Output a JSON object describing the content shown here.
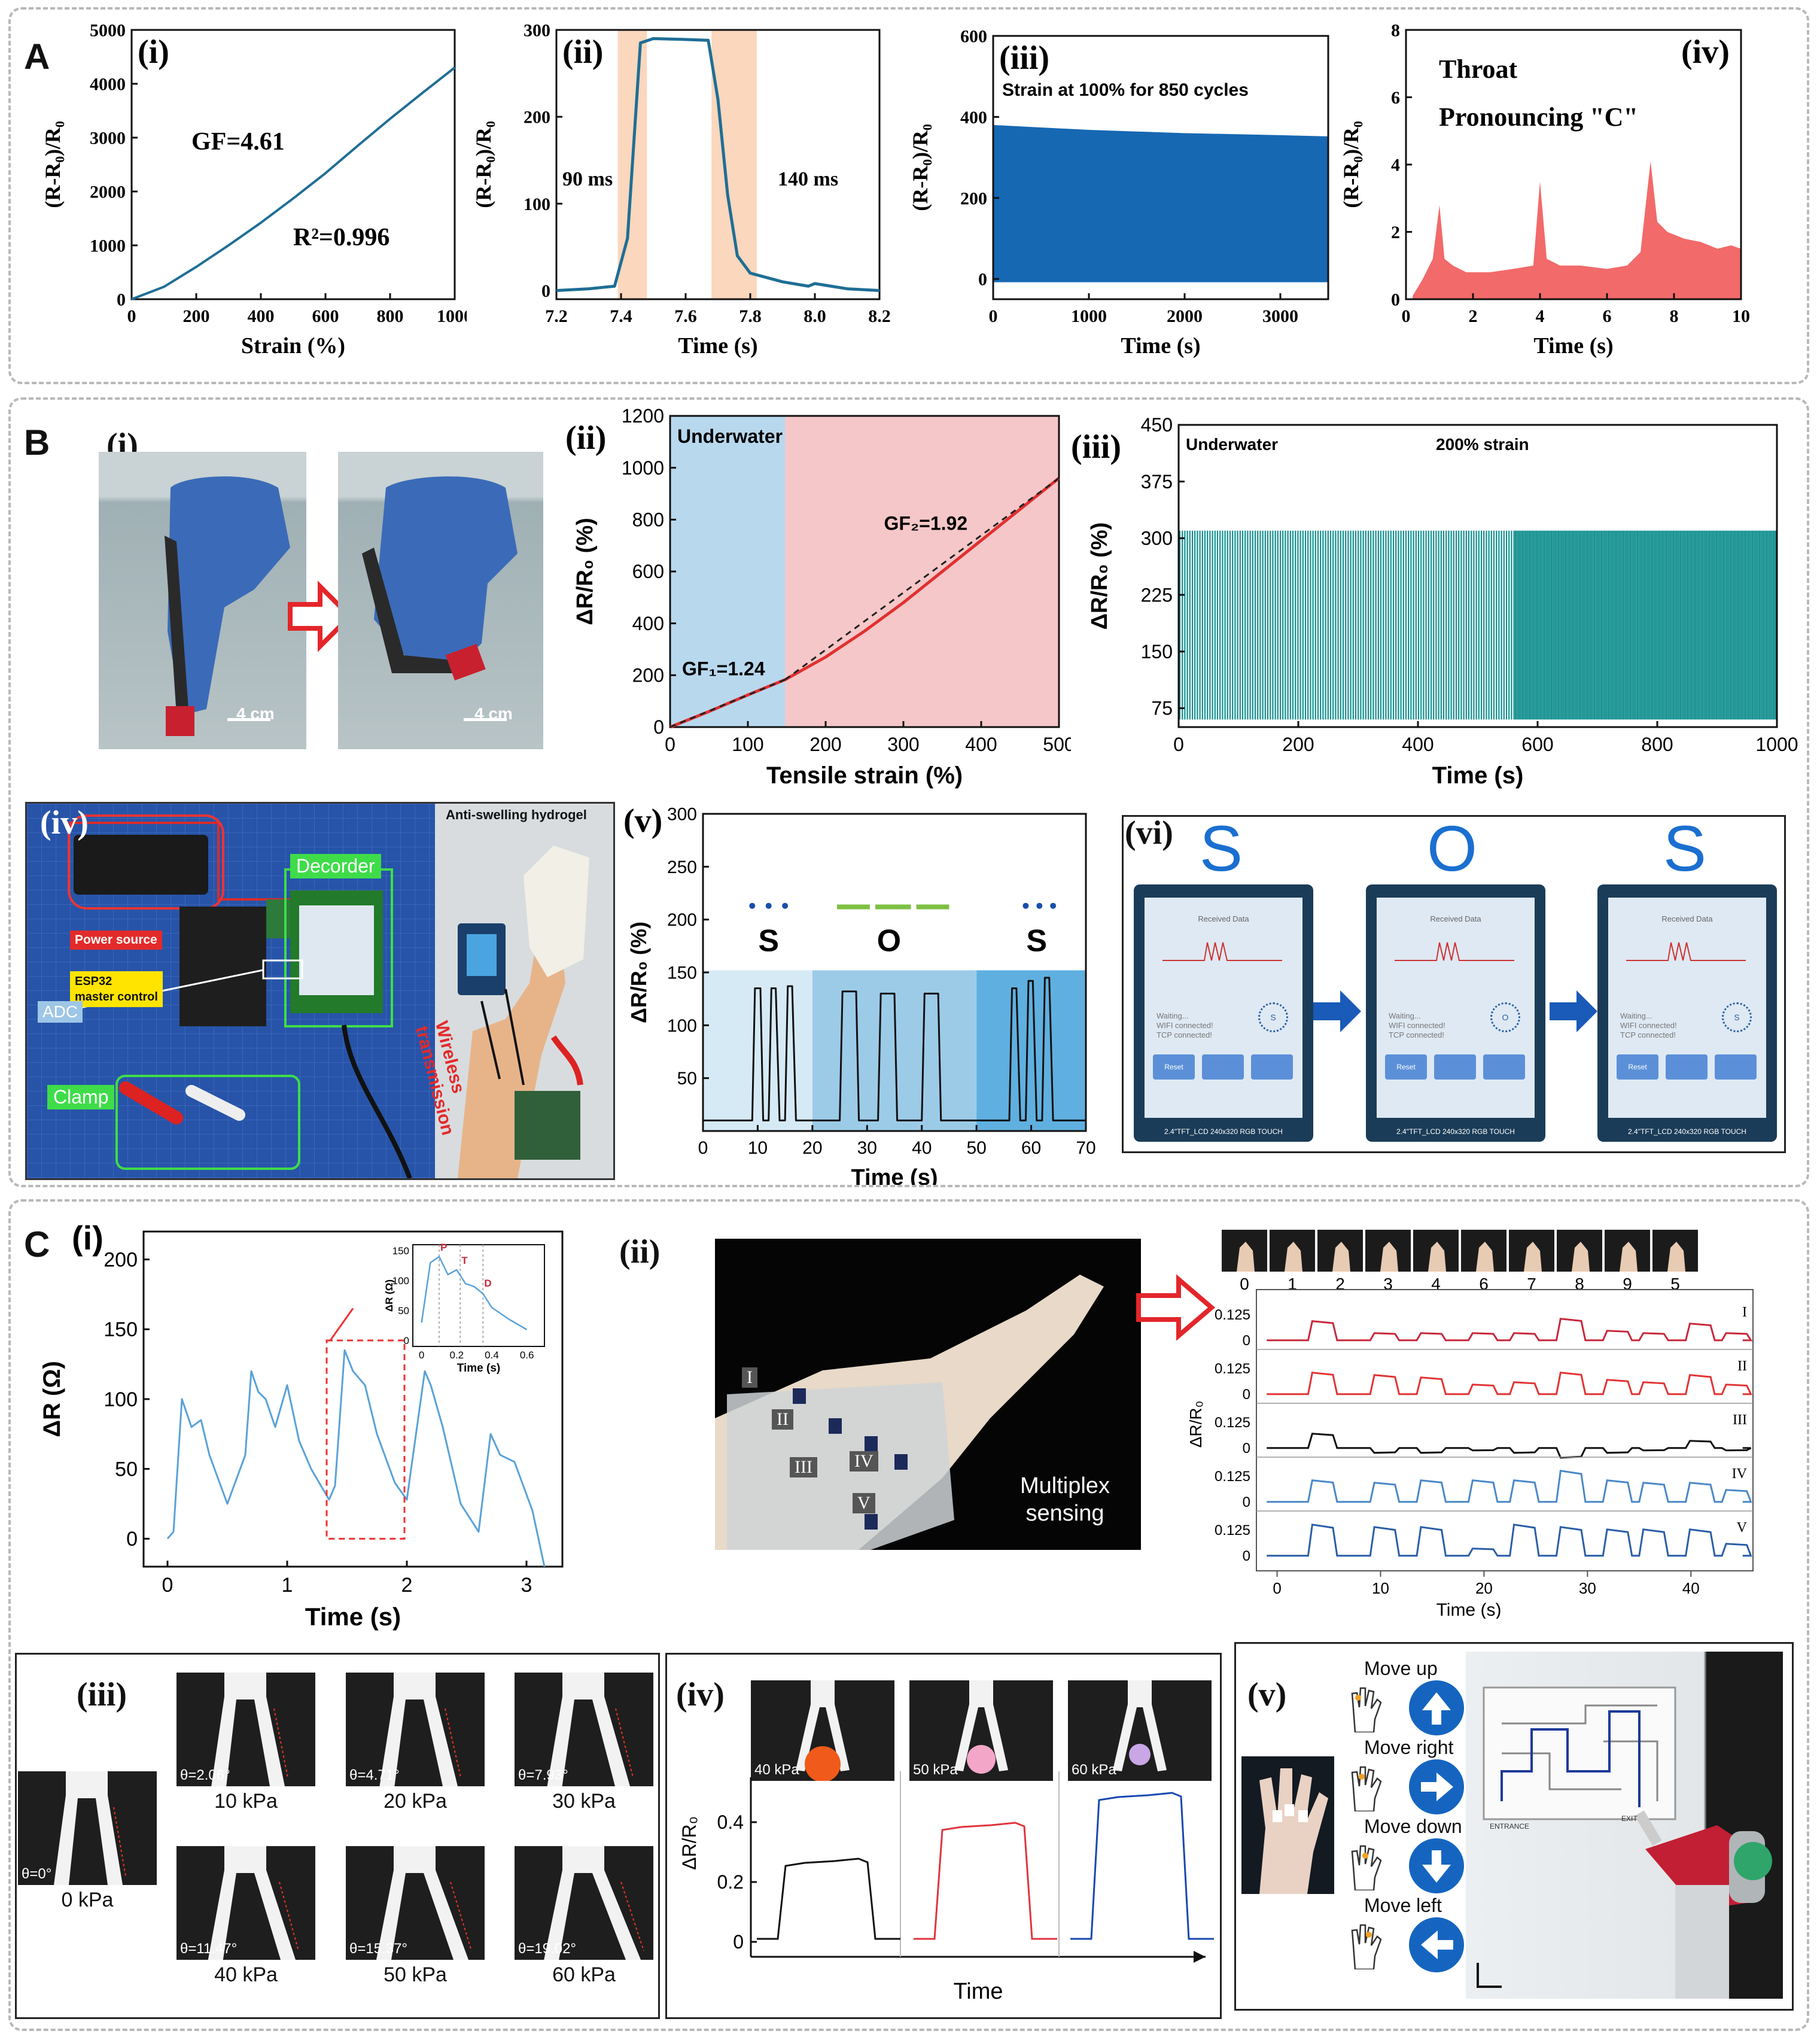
{
  "sections": {
    "A": {
      "letter": "A"
    },
    "B": {
      "letter": "B"
    },
    "C": {
      "letter": "C"
    }
  },
  "chart_data": [
    {
      "id": "A-i",
      "panel_label": "(i)",
      "type": "line",
      "x": [
        0,
        100,
        200,
        300,
        400,
        500,
        600,
        700,
        800,
        900,
        1000
      ],
      "series": [
        {
          "values": [
            0,
            230,
            600,
            1000,
            1420,
            1870,
            2340,
            2850,
            3350,
            3830,
            4300
          ]
        }
      ],
      "xlabel": "Strain (%)",
      "ylabel": "(R-R₀)/R₀",
      "xlim": [
        0,
        1000
      ],
      "ylim": [
        0,
        5000
      ],
      "xticks": [
        "0",
        "200",
        "400",
        "600",
        "800",
        "1000"
      ],
      "yticks": [
        "0",
        "1000",
        "2000",
        "3000",
        "4000",
        "5000"
      ],
      "annotations": [
        "GF=4.61",
        "R²=0.996"
      ],
      "color": "#1f6e95"
    },
    {
      "id": "A-ii",
      "panel_label": "(ii)",
      "type": "line",
      "x": [
        7.2,
        7.3,
        7.38,
        7.42,
        7.46,
        7.5,
        7.6,
        7.67,
        7.7,
        7.73,
        7.76,
        7.8,
        7.9,
        7.98,
        8.0,
        8.1,
        8.2
      ],
      "series": [
        {
          "values": [
            0,
            2,
            5,
            60,
            285,
            290,
            289,
            288,
            220,
            110,
            40,
            20,
            10,
            5,
            8,
            2,
            0
          ]
        }
      ],
      "xlabel": "Time (s)",
      "ylabel": "(R-R₀)/R₀",
      "xlim": [
        7.2,
        8.2
      ],
      "ylim": [
        -10,
        300
      ],
      "xticks": [
        "7.2",
        "7.4",
        "7.6",
        "7.8",
        "8.0",
        "8.2"
      ],
      "yticks": [
        "0",
        "100",
        "200",
        "300"
      ],
      "shaded_x": [
        [
          7.39,
          7.48
        ],
        [
          7.68,
          7.82
        ]
      ],
      "annotations": [
        "90 ms",
        "140 ms"
      ],
      "color": "#1f6e95"
    },
    {
      "id": "A-iii",
      "panel_label": "(iii)",
      "type": "area",
      "title": "Strain at 100% for 850 cycles",
      "x": [
        0,
        1000,
        2000,
        3000,
        3500
      ],
      "series": [
        {
          "name": "upper",
          "values": [
            380,
            368,
            360,
            355,
            352
          ]
        },
        {
          "name": "lower",
          "values": [
            0,
            0,
            0,
            0,
            0
          ]
        }
      ],
      "xlabel": "Time (s)",
      "ylabel": "(R-R₀)/R₀",
      "xlim": [
        0,
        3500
      ],
      "ylim": [
        -50,
        600
      ],
      "xticks": [
        "0",
        "1000",
        "2000",
        "3000"
      ],
      "yticks": [
        "0",
        "200",
        "400",
        "600"
      ],
      "color": "#1668b2"
    },
    {
      "id": "A-iv",
      "panel_label": "(iv)",
      "type": "area",
      "title": "Throat",
      "subtitle": "Pronouncing \"C\"",
      "x": [
        0.2,
        0.5,
        0.8,
        1.0,
        1.15,
        1.4,
        1.8,
        2.5,
        3.2,
        3.8,
        4.0,
        4.2,
        4.6,
        5.2,
        6.0,
        6.6,
        7.0,
        7.3,
        7.5,
        7.8,
        8.3,
        8.8,
        9.3,
        9.7,
        10.0
      ],
      "series": [
        {
          "values": [
            0.1,
            0.6,
            1.2,
            2.8,
            1.2,
            1.0,
            0.8,
            0.8,
            0.9,
            1.0,
            3.5,
            1.2,
            1.0,
            1.0,
            0.9,
            1.0,
            1.4,
            4.1,
            2.3,
            2.0,
            1.8,
            1.7,
            1.5,
            1.6,
            1.5
          ]
        }
      ],
      "xlabel": "Time (s)",
      "ylabel": "(R-R₀)/R₀",
      "xlim": [
        0,
        10
      ],
      "ylim": [
        0,
        8
      ],
      "xticks": [
        "0",
        "2",
        "4",
        "6",
        "8",
        "10"
      ],
      "yticks": [
        "0",
        "2",
        "4",
        "6",
        "8"
      ],
      "color": "#f26a6a"
    },
    {
      "id": "B-ii",
      "panel_label": "(ii)",
      "type": "line",
      "x": [
        0,
        50,
        100,
        148,
        200,
        250,
        300,
        350,
        400,
        450,
        500
      ],
      "series": [
        {
          "values": [
            0,
            60,
            124,
            183,
            270,
            370,
            480,
            600,
            720,
            840,
            960
          ]
        }
      ],
      "xlabel": "Tensile strain (%)",
      "ylabel": "ΔR/R₀ (%)",
      "xlim": [
        0,
        500
      ],
      "ylim": [
        0,
        1200
      ],
      "xticks": [
        "0",
        "100",
        "200",
        "300",
        "400",
        "500"
      ],
      "yticks": [
        "0",
        "200",
        "400",
        "600",
        "800",
        "1000",
        "1200"
      ],
      "regions": [
        {
          "label": "Underwater",
          "x": [
            0,
            148
          ],
          "color": "#b8d8ee"
        },
        {
          "label": "",
          "x": [
            148,
            500
          ],
          "color": "#f6c7c8"
        }
      ],
      "annotations": [
        "GF₁=1.24",
        "GF₂=1.92"
      ],
      "color": "#e03030"
    },
    {
      "id": "B-iii",
      "panel_label": "(iii)",
      "type": "line",
      "title": "Underwater",
      "subtitle": "200% strain",
      "xlabel": "Time (s)",
      "ylabel": "ΔR/R₀ (%)",
      "xlim": [
        0,
        1000
      ],
      "ylim": [
        50,
        450
      ],
      "xticks": [
        "0",
        "200",
        "400",
        "600",
        "800",
        "1000"
      ],
      "yticks": [
        "75",
        "150",
        "225",
        "300",
        "375",
        "450"
      ],
      "signal_range": [
        60,
        310
      ],
      "color": "#138f8f"
    },
    {
      "id": "B-v",
      "panel_label": "(v)",
      "type": "line",
      "labels": [
        "S",
        "O",
        "S"
      ],
      "x": [
        0,
        9,
        9.5,
        10.5,
        11,
        12,
        12.5,
        13.3,
        14,
        15,
        15.5,
        16.3,
        17,
        25,
        25.5,
        28,
        28.5,
        32,
        32.5,
        35,
        35.5,
        40,
        40.5,
        43,
        43.5,
        56,
        56.5,
        57.3,
        58,
        59,
        59.5,
        60.3,
        61,
        62,
        62.5,
        63.3,
        64,
        70
      ],
      "series": [
        {
          "values": [
            10,
            10,
            135,
            135,
            10,
            10,
            135,
            135,
            10,
            10,
            137,
            137,
            10,
            10,
            132,
            132,
            10,
            10,
            130,
            130,
            10,
            10,
            130,
            130,
            10,
            10,
            135,
            135,
            10,
            10,
            142,
            142,
            10,
            10,
            145,
            145,
            10,
            10
          ]
        }
      ],
      "xlabel": "Time (s)",
      "ylabel": "ΔR/R₀ (%)",
      "xlim": [
        0,
        70
      ],
      "ylim": [
        0,
        300
      ],
      "xticks": [
        "0",
        "10",
        "20",
        "30",
        "40",
        "50",
        "60",
        "70"
      ],
      "yticks": [
        "50",
        "100",
        "150",
        "200",
        "250",
        "300"
      ],
      "bands": [
        [
          0,
          20,
          "#d6eaf6"
        ],
        [
          20,
          50,
          "#9ccbe8"
        ],
        [
          50,
          70,
          "#5fb0e0"
        ]
      ],
      "color": "#111111"
    },
    {
      "id": "C-i",
      "panel_label": "(i)",
      "type": "line",
      "x": [
        0,
        0.05,
        0.12,
        0.2,
        0.28,
        0.35,
        0.5,
        0.65,
        0.7,
        0.76,
        0.82,
        0.9,
        1.0,
        1.1,
        1.15,
        1.2,
        1.35,
        1.4,
        1.48,
        1.55,
        1.65,
        1.75,
        1.9,
        2.0,
        2.15,
        2.2,
        2.3,
        2.45,
        2.6,
        2.7,
        2.78,
        2.9,
        3.05,
        3.15
      ],
      "series": [
        {
          "values": [
            0,
            5,
            100,
            80,
            85,
            60,
            25,
            60,
            120,
            105,
            100,
            80,
            110,
            70,
            60,
            50,
            28,
            38,
            135,
            120,
            110,
            75,
            40,
            28,
            120,
            110,
            80,
            25,
            5,
            75,
            60,
            55,
            20,
            -20
          ]
        }
      ],
      "xlabel": "Time (s)",
      "ylabel": "ΔR (Ω)",
      "xlim": [
        -0.2,
        3.3
      ],
      "ylim": [
        -20,
        220
      ],
      "xticks": [
        "0",
        "1",
        "2",
        "3"
      ],
      "yticks": [
        "0",
        "50",
        "100",
        "150",
        "200"
      ],
      "inset": {
        "x": [
          0,
          0.05,
          0.1,
          0.15,
          0.2,
          0.25,
          0.3,
          0.35,
          0.4,
          0.5,
          0.6
        ],
        "values": [
          30,
          130,
          140,
          110,
          118,
          95,
          90,
          78,
          55,
          35,
          18
        ],
        "xticks": [
          "0",
          "0.2",
          "0.4",
          "0.6"
        ],
        "yticks": [
          "0",
          "50",
          "100",
          "150"
        ],
        "xlabel": "Time (s)",
        "ylabel": "ΔR (Ω)",
        "marks": [
          "P",
          "T",
          "D"
        ]
      },
      "color": "#5aa2d8"
    },
    {
      "id": "C-ii",
      "panel_label": "(ii)",
      "type": "line",
      "x_categories": [
        "0",
        "1",
        "2",
        "3",
        "4",
        "6",
        "7",
        "8",
        "9",
        "5"
      ],
      "series": [
        {
          "name": "I",
          "color": "#c8283c"
        },
        {
          "name": "II",
          "color": "#e23434"
        },
        {
          "name": "III",
          "color": "#111111"
        },
        {
          "name": "IV",
          "color": "#4a88c8"
        },
        {
          "name": "V",
          "color": "#2a5ea8"
        }
      ],
      "xlabel": "Time (s)",
      "ylabel": "ΔR/R₀",
      "xlim": [
        -2,
        46
      ],
      "xticks": [
        "0",
        "10",
        "20",
        "30",
        "40"
      ],
      "yticks": [
        "0",
        "0.125"
      ]
    },
    {
      "id": "C-iv",
      "panel_label": "(iv)",
      "type": "line",
      "series": [
        {
          "name": "40 kPa",
          "plateau": 0.27,
          "color": "#111111"
        },
        {
          "name": "50 kPa",
          "plateau": 0.39,
          "color": "#e0353f"
        },
        {
          "name": "60 kPa",
          "plateau": 0.49,
          "color": "#1848b0"
        }
      ],
      "xlabel": "Time",
      "ylabel": "ΔR/R₀",
      "ylim": [
        -0.05,
        0.55
      ],
      "yticks": [
        "0",
        "0.2",
        "0.4"
      ]
    }
  ],
  "panelB_i": {
    "label": "(i)",
    "scale": [
      "4 cm",
      "4 cm"
    ]
  },
  "panelB_iv": {
    "label": "(iv)",
    "power": "Power source",
    "esp": "ESP32\nmaster control",
    "decorder": "Decorder",
    "adc": "ADC",
    "clamp": "Clamp",
    "hydrogel": "Anti-swelling hydrogel",
    "wireless": "Wireless\ntransmission"
  },
  "panelB_vi": {
    "label": "(vi)",
    "letters": [
      "S",
      "O",
      "S"
    ],
    "screen_title": "Received Data",
    "screen_text": "Waiting...\nWIFI connected!\nTCP connected!",
    "btn_reset": "Reset",
    "footer": "2.4\"TFT_LCD 240x320 RGB TOUCH"
  },
  "panelC_ii": {
    "caption": "Multiplex\nsensing",
    "sensors": [
      "I",
      "II",
      "III",
      "IV",
      "V"
    ]
  },
  "panelC_iii": {
    "label": "(iii)",
    "items": [
      {
        "angle": "θ=0°",
        "pressure": "0 kPa"
      },
      {
        "angle": "θ=2.06°",
        "pressure": "10 kPa"
      },
      {
        "angle": "θ=4.71°",
        "pressure": "20 kPa"
      },
      {
        "angle": "θ=7.93°",
        "pressure": "30 kPa"
      },
      {
        "angle": "θ=11.47°",
        "pressure": "40 kPa"
      },
      {
        "angle": "θ=15.37°",
        "pressure": "50 kPa"
      },
      {
        "angle": "θ=19.02°",
        "pressure": "60 kPa"
      }
    ]
  },
  "panelC_iv": {
    "photos": [
      "40 kPa",
      "50 kPa",
      "60 kPa"
    ]
  },
  "panelC_v": {
    "label": "(v)",
    "moves": [
      "Move up",
      "Move right",
      "Move down",
      "Move left"
    ],
    "maze_entrance": "ENTRANCE",
    "maze_exit": "EXIT"
  }
}
